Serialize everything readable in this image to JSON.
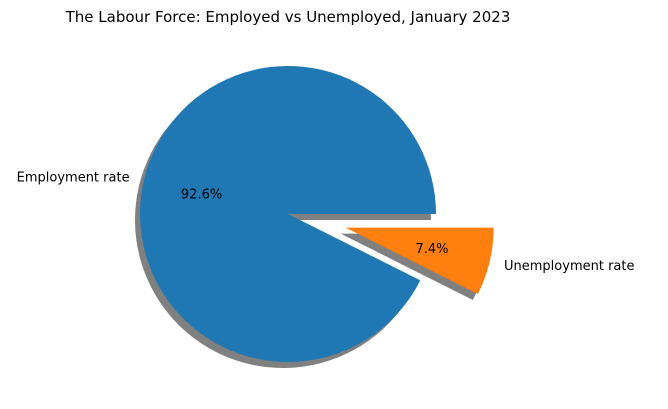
{
  "chart_data": {
    "type": "pie",
    "title": "The Labour Force: Employed vs Unemployed, January 2023",
    "slices": [
      {
        "label": "Employment rate",
        "value": 92.6,
        "pct_label": "92.6%",
        "color": "#1f77b4",
        "explode": 0
      },
      {
        "label": "Unemployment rate",
        "value": 7.4,
        "pct_label": "7.4%",
        "color": "#ff7f0e",
        "explode": 0.4
      }
    ],
    "start_angle_deg": 0,
    "direction": "counterclockwise",
    "shadow": true,
    "shadow_color": "#808080"
  }
}
